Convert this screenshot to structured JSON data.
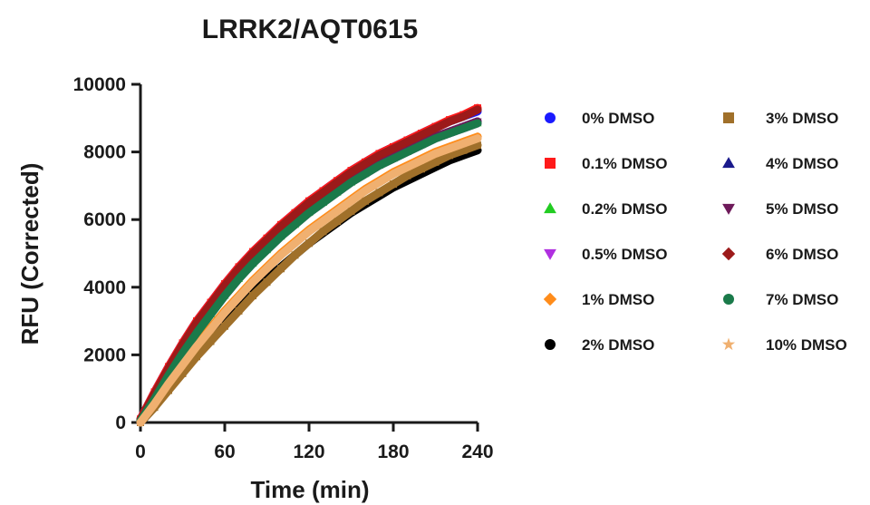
{
  "chart_data": {
    "type": "scatter",
    "title": "LRRK2/AQT0615",
    "xlabel": "Time (min)",
    "ylabel": "RFU (Corrected)",
    "xlim": [
      0,
      240
    ],
    "ylim": [
      0,
      10000
    ],
    "xticks": [
      0,
      60,
      120,
      180,
      240
    ],
    "yticks": [
      0,
      2000,
      4000,
      6000,
      8000,
      10000
    ],
    "grid": false,
    "legend_position": "right",
    "x": [
      0,
      10,
      20,
      30,
      40,
      50,
      60,
      70,
      80,
      90,
      100,
      110,
      120,
      130,
      140,
      150,
      160,
      170,
      180,
      190,
      200,
      210,
      220,
      230,
      240
    ],
    "series": [
      {
        "name": "0% DMSO",
        "color": "#1a1aff",
        "marker": "circle",
        "values": [
          100,
          900,
          1650,
          2350,
          3000,
          3550,
          4100,
          4600,
          5050,
          5450,
          5850,
          6200,
          6550,
          6850,
          7150,
          7450,
          7700,
          7950,
          8150,
          8350,
          8550,
          8750,
          8900,
          9050,
          9200
        ]
      },
      {
        "name": "0.1% DMSO",
        "color": "#ff1a1a",
        "marker": "square",
        "values": [
          100,
          900,
          1650,
          2350,
          3000,
          3550,
          4100,
          4600,
          5050,
          5450,
          5850,
          6200,
          6550,
          6850,
          7150,
          7450,
          7700,
          7950,
          8150,
          8350,
          8550,
          8750,
          8950,
          9100,
          9300
        ]
      },
      {
        "name": "0.2% DMSO",
        "color": "#22cc22",
        "marker": "triangle-up",
        "values": [
          50,
          700,
          1400,
          2050,
          2650,
          3200,
          3750,
          4250,
          4700,
          5100,
          5500,
          5850,
          6200,
          6500,
          6800,
          7100,
          7350,
          7600,
          7800,
          8000,
          8200,
          8400,
          8550,
          8700,
          8850
        ]
      },
      {
        "name": "0.5% DMSO",
        "color": "#b030e0",
        "marker": "triangle-down",
        "values": [
          50,
          700,
          1400,
          2050,
          2650,
          3200,
          3750,
          4250,
          4700,
          5100,
          5500,
          5850,
          6200,
          6500,
          6800,
          7100,
          7350,
          7600,
          7800,
          8000,
          8200,
          8400,
          8550,
          8700,
          8850
        ]
      },
      {
        "name": "1% DMSO",
        "color": "#ff8c1a",
        "marker": "diamond",
        "values": [
          0,
          550,
          1150,
          1750,
          2300,
          2800,
          3300,
          3750,
          4200,
          4600,
          5000,
          5350,
          5700,
          6000,
          6300,
          6600,
          6900,
          7150,
          7400,
          7600,
          7800,
          8000,
          8150,
          8300,
          8450
        ]
      },
      {
        "name": "2% DMSO",
        "color": "#000000",
        "marker": "circle",
        "values": [
          0,
          450,
          1000,
          1550,
          2050,
          2550,
          3000,
          3450,
          3850,
          4250,
          4600,
          4950,
          5300,
          5600,
          5900,
          6200,
          6450,
          6700,
          6950,
          7150,
          7350,
          7550,
          7750,
          7900,
          8050
        ]
      },
      {
        "name": "3% DMSO",
        "color": "#a0702a",
        "marker": "square",
        "values": [
          0,
          450,
          950,
          1450,
          1950,
          2400,
          2850,
          3300,
          3750,
          4150,
          4550,
          4950,
          5300,
          5650,
          5950,
          6250,
          6550,
          6800,
          7050,
          7300,
          7500,
          7700,
          7900,
          8050,
          8200
        ]
      },
      {
        "name": "4% DMSO",
        "color": "#1a1a8c",
        "marker": "triangle-up",
        "values": [
          50,
          750,
          1450,
          2100,
          2700,
          3250,
          3800,
          4300,
          4750,
          5150,
          5550,
          5900,
          6250,
          6550,
          6850,
          7150,
          7400,
          7650,
          7850,
          8050,
          8250,
          8450,
          8600,
          8750,
          8900
        ]
      },
      {
        "name": "5% DMSO",
        "color": "#6e1a5a",
        "marker": "triangle-down",
        "values": [
          50,
          750,
          1450,
          2100,
          2700,
          3250,
          3800,
          4300,
          4750,
          5150,
          5550,
          5900,
          6250,
          6550,
          6850,
          7150,
          7400,
          7650,
          7850,
          8050,
          8250,
          8450,
          8600,
          8750,
          8900
        ]
      },
      {
        "name": "6% DMSO",
        "color": "#9c1a1a",
        "marker": "diamond",
        "values": [
          80,
          850,
          1600,
          2300,
          2950,
          3500,
          4050,
          4550,
          5000,
          5400,
          5800,
          6150,
          6500,
          6800,
          7100,
          7400,
          7650,
          7900,
          8100,
          8300,
          8500,
          8700,
          8900,
          9050,
          9250
        ]
      },
      {
        "name": "7% DMSO",
        "color": "#1a7a4a",
        "marker": "circle",
        "values": [
          50,
          700,
          1400,
          2050,
          2650,
          3200,
          3750,
          4250,
          4700,
          5100,
          5500,
          5850,
          6200,
          6500,
          6800,
          7100,
          7350,
          7600,
          7800,
          8000,
          8200,
          8400,
          8550,
          8700,
          8850
        ]
      },
      {
        "name": "10% DMSO",
        "color": "#f0b070",
        "marker": "star",
        "values": [
          0,
          550,
          1150,
          1700,
          2250,
          2750,
          3250,
          3700,
          4150,
          4550,
          4950,
          5300,
          5650,
          5950,
          6250,
          6550,
          6850,
          7100,
          7350,
          7550,
          7750,
          7950,
          8100,
          8250,
          8400
        ]
      }
    ]
  }
}
